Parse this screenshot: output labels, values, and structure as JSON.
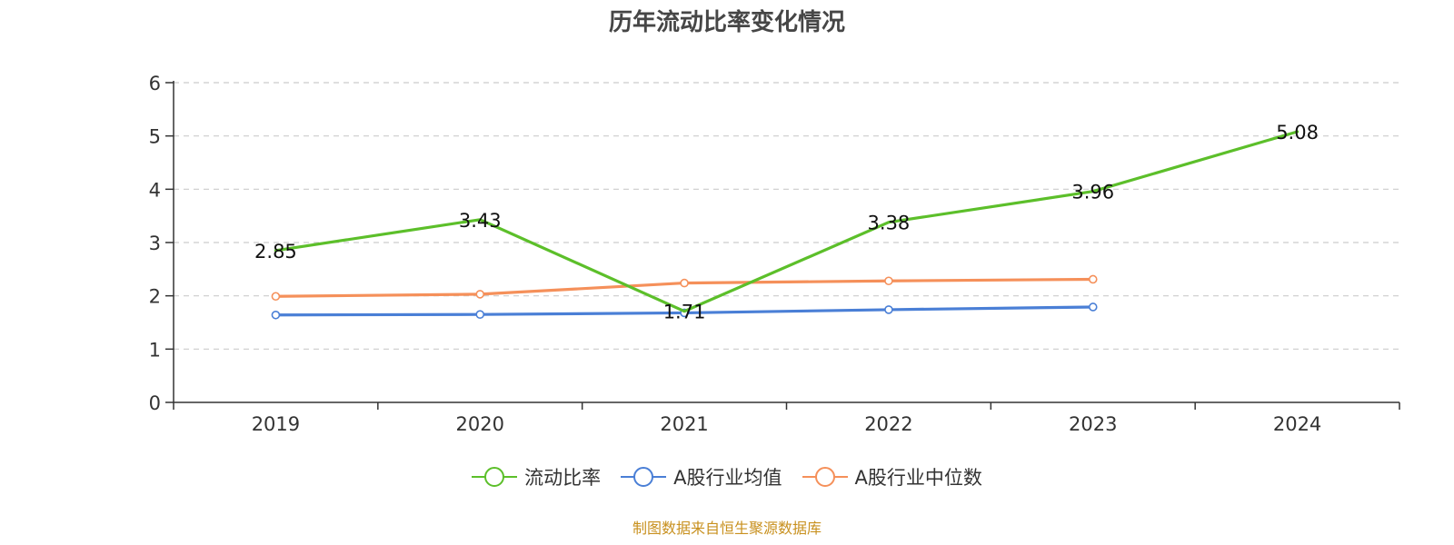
{
  "chart_data": {
    "type": "line",
    "title": "历年流动比率变化情况",
    "categories": [
      "2019",
      "2020",
      "2021",
      "2022",
      "2023",
      "2024"
    ],
    "ylim": [
      0,
      6
    ],
    "yticks": [
      0,
      1,
      2,
      3,
      4,
      5,
      6
    ],
    "grid": true,
    "legend_position": "bottom",
    "series": [
      {
        "name": "流动比率",
        "color": "#5cbf2a",
        "values": [
          2.85,
          3.43,
          1.71,
          3.38,
          3.96,
          5.08
        ],
        "labels": [
          "2.85",
          "3.43",
          "1.71",
          "3.38",
          "3.96",
          "5.08"
        ],
        "show_markers": false
      },
      {
        "name": "A股行业均值",
        "color": "#4a7fd6",
        "values": [
          1.64,
          1.65,
          1.68,
          1.74,
          1.79,
          null
        ],
        "show_markers": true
      },
      {
        "name": "A股行业中位数",
        "color": "#f5905a",
        "values": [
          1.99,
          2.03,
          2.24,
          2.28,
          2.31,
          null
        ],
        "show_markers": true
      }
    ]
  },
  "footer": {
    "source": "制图数据来自恒生聚源数据库"
  }
}
